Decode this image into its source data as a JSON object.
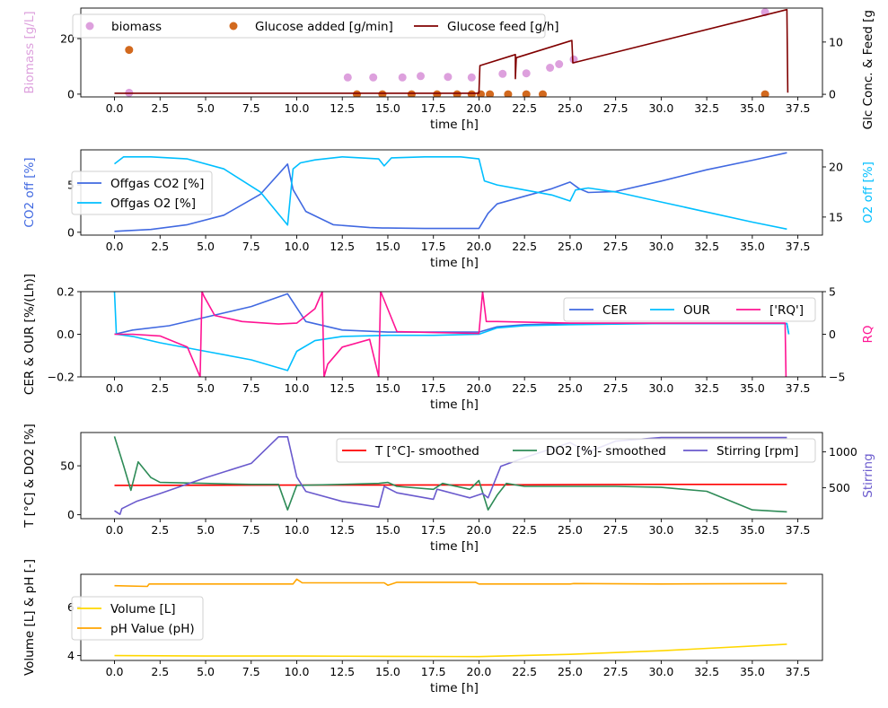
{
  "figure": {
    "colors": {
      "biomass": "#DDA0DD",
      "glucose_added": "#D2691E",
      "glucose_feed": "#800000",
      "co2": "#4169E1",
      "o2": "#00BFFF",
      "cer": "#4169E1",
      "our": "#00BFFF",
      "rq": "#FF1493",
      "temp": "#FF0000",
      "do2": "#2E8B57",
      "stirring": "#6A5ACD",
      "volume": "#FFD700",
      "ph": "#FFA500"
    }
  },
  "chart_data": [
    {
      "type": "scatter+line",
      "xlabel": "time [h]",
      "xlim": [
        -1.85,
        38.85
      ],
      "xticks": [
        "0.0",
        "2.5",
        "5.0",
        "7.5",
        "10.0",
        "12.5",
        "15.0",
        "17.5",
        "20.0",
        "22.5",
        "25.0",
        "27.5",
        "30.0",
        "32.5",
        "35.0",
        "37.5"
      ],
      "ylabel": "Biomass [g/L]",
      "ylim": [
        -1,
        31
      ],
      "yticks": [
        "0",
        "20"
      ],
      "ylabel_right": "Glc Conc. & Feed [g",
      "ylim_right": [
        -0.5,
        16.5
      ],
      "yticks_right": [
        "0",
        "10"
      ],
      "legend": [
        "biomass",
        "Glucose added [g/min]",
        "Glucose feed [g/h]"
      ],
      "legend_position": "upper-left",
      "series": [
        {
          "name": "biomass",
          "kind": "scatter",
          "axis": "left",
          "x": [
            0.8,
            12.8,
            14.2,
            15.8,
            16.8,
            18.3,
            19.6,
            21.3,
            22.6,
            23.9,
            24.4,
            25.2,
            35.7
          ],
          "y": [
            0.5,
            6,
            6,
            6,
            6.5,
            6.2,
            6,
            7.3,
            7.5,
            9.5,
            10.8,
            12.5,
            29.5
          ]
        },
        {
          "name": "Glucose added [g/min]",
          "kind": "scatter",
          "axis": "right",
          "x": [
            0.8,
            13.3,
            14.7,
            16.3,
            17.7,
            18.8,
            19.6,
            20.1,
            20.6,
            21.6,
            22.6,
            23.5,
            35.7
          ],
          "y": [
            8.5,
            0,
            0,
            0,
            0,
            0,
            0,
            0,
            0,
            0,
            0,
            0,
            0
          ]
        },
        {
          "name": "Glucose feed [g/h]",
          "kind": "line",
          "axis": "right",
          "x": [
            0,
            20.0,
            20.05,
            22.0,
            22.0,
            22.05,
            25.1,
            25.15,
            36.9,
            36.95
          ],
          "y": [
            0.2,
            0.2,
            5.5,
            7.6,
            3,
            7.0,
            10.3,
            6.0,
            16.2,
            0.3
          ]
        }
      ]
    },
    {
      "type": "line",
      "xlabel": "time [h]",
      "xlim": [
        -1.85,
        38.85
      ],
      "xticks": [
        "0.0",
        "2.5",
        "5.0",
        "7.5",
        "10.0",
        "12.5",
        "15.0",
        "17.5",
        "20.0",
        "22.5",
        "25.0",
        "27.5",
        "30.0",
        "32.5",
        "35.0",
        "37.5"
      ],
      "ylabel": "CO2 off [%]",
      "ylim": [
        -0.3,
        8.7
      ],
      "yticks": [
        "0",
        "5"
      ],
      "ylabel_right": "O2 off [%]",
      "ylim_right": [
        13.2,
        21.7
      ],
      "yticks_right": [
        "15",
        "20"
      ],
      "legend": [
        "Offgas CO2 [%]",
        "Offgas O2 [%]"
      ],
      "legend_position": "center-left",
      "series": [
        {
          "name": "Offgas CO2 [%]",
          "axis": "left",
          "x": [
            0,
            2,
            4,
            6,
            8,
            9.5,
            9.8,
            10.5,
            12,
            14,
            14.7,
            15,
            17,
            19,
            20.0,
            20.5,
            21,
            22.5,
            24,
            25,
            25.5,
            26,
            27.5,
            30,
            32.5,
            35,
            36.9
          ],
          "y": [
            0.1,
            0.3,
            0.8,
            1.8,
            4,
            7.2,
            4.5,
            2.2,
            0.8,
            0.5,
            0.45,
            0.45,
            0.4,
            0.4,
            0.4,
            2,
            3,
            3.8,
            4.6,
            5.3,
            4.6,
            4.2,
            4.3,
            5.4,
            6.6,
            7.6,
            8.4
          ]
        },
        {
          "name": "Offgas O2 [%]",
          "axis": "right",
          "x": [
            0,
            0.5,
            2,
            4,
            6,
            8,
            9.5,
            9.8,
            10.2,
            11,
            12.5,
            14.5,
            14.8,
            15.2,
            17,
            19,
            20.0,
            20.3,
            21,
            22.5,
            24,
            25,
            25.3,
            26,
            27.5,
            30,
            32.5,
            35,
            36.9
          ],
          "y": [
            20.3,
            21,
            21,
            20.8,
            19.8,
            17.5,
            14.2,
            19.8,
            20.4,
            20.7,
            21,
            20.8,
            20.1,
            20.9,
            21,
            21,
            20.8,
            18.6,
            18.2,
            17.7,
            17.2,
            16.6,
            17.7,
            17.9,
            17.5,
            16.5,
            15.5,
            14.5,
            13.8
          ]
        }
      ]
    },
    {
      "type": "line",
      "xlabel": "time [h]",
      "xlim": [
        -1.85,
        38.85
      ],
      "xticks": [
        "0.0",
        "2.5",
        "5.0",
        "7.5",
        "10.0",
        "12.5",
        "15.0",
        "17.5",
        "20.0",
        "22.5",
        "25.0",
        "27.5",
        "30.0",
        "32.5",
        "35.0",
        "37.5"
      ],
      "ylabel": "CER & OUR [%/(Lh)]",
      "ylim": [
        -0.2,
        0.2
      ],
      "yticks": [
        "−0.2",
        "0.0",
        "0.2"
      ],
      "ylabel_right": "RQ",
      "ylim_right": [
        -5,
        5
      ],
      "yticks_right": [
        "−5",
        "0",
        "5"
      ],
      "legend": [
        "CER",
        "OUR",
        "['RQ']"
      ],
      "legend_position": "upper-right",
      "series": [
        {
          "name": "CER",
          "axis": "left",
          "x": [
            0,
            1,
            3,
            5,
            7.5,
            9.5,
            10.5,
            12.5,
            15,
            17.5,
            20,
            21,
            22.5,
            25,
            30,
            36.9,
            37.0
          ],
          "y": [
            0.0,
            0.02,
            0.04,
            0.08,
            0.13,
            0.19,
            0.06,
            0.02,
            0.01,
            0.01,
            0.01,
            0.035,
            0.045,
            0.05,
            0.05,
            0.05,
            0.0
          ]
        },
        {
          "name": "OUR",
          "axis": "left",
          "x": [
            0,
            0.1,
            1,
            2.5,
            5,
            7.5,
            9.5,
            10,
            11,
            12.5,
            15,
            17.5,
            20,
            21,
            22.5,
            25,
            30,
            36.9,
            37.0
          ],
          "y": [
            0.2,
            0.0,
            -0.01,
            -0.04,
            -0.08,
            -0.12,
            -0.17,
            -0.08,
            -0.03,
            -0.01,
            -0.005,
            -0.005,
            0.0,
            0.03,
            0.04,
            0.045,
            0.05,
            0.05,
            0.0
          ]
        },
        {
          "name": "['RQ']",
          "axis": "right",
          "x": [
            0,
            1,
            2.5,
            4,
            4.7,
            4.8,
            4.9,
            5.5,
            7,
            9,
            10,
            11,
            11.4,
            11.5,
            11.7,
            12.5,
            14,
            14.5,
            14.6,
            14.8,
            15.5,
            17.5,
            20,
            20.2,
            20.4,
            21,
            25,
            30,
            36.8,
            36.85
          ],
          "y": [
            0,
            0,
            -0.2,
            -1.5,
            -5,
            5,
            4.5,
            2.2,
            1.5,
            1.2,
            1.3,
            3,
            5,
            -5,
            -3.5,
            -1.5,
            -0.6,
            -5,
            5,
            4,
            0.3,
            0.2,
            0.1,
            5,
            1.5,
            1.5,
            1.3,
            1.3,
            1.3,
            -5
          ]
        }
      ]
    },
    {
      "type": "line",
      "xlabel": "time [h]",
      "xlim": [
        -1.85,
        38.85
      ],
      "xticks": [
        "0.0",
        "2.5",
        "5.0",
        "7.5",
        "10.0",
        "12.5",
        "15.0",
        "17.5",
        "20.0",
        "22.5",
        "25.0",
        "27.5",
        "30.0",
        "32.5",
        "35.0",
        "37.5"
      ],
      "ylabel": "T [°C] & DO2 [%]",
      "ylim": [
        -4,
        84
      ],
      "yticks": [
        "0",
        "50"
      ],
      "ylabel_right": "Stirring",
      "ylim_right": [
        70,
        1270
      ],
      "yticks_right": [
        "500",
        "1000"
      ],
      "legend": [
        "T [°C]- smoothed",
        "DO2 [%]- smoothed",
        "Stirring [rpm]"
      ],
      "legend_position": "upper-right",
      "series": [
        {
          "name": "T [°C]- smoothed",
          "axis": "left",
          "x": [
            0,
            10,
            20,
            30,
            36.9
          ],
          "y": [
            30,
            30.3,
            30.5,
            31,
            31
          ]
        },
        {
          "name": "DO2 [%]- smoothed",
          "axis": "left",
          "x": [
            0,
            0.5,
            0.9,
            1.3,
            2,
            2.5,
            5,
            7.5,
            9,
            9.5,
            10,
            12.5,
            14.5,
            15,
            15.5,
            17.5,
            18,
            19.5,
            20,
            20.5,
            21,
            21.5,
            22.5,
            25,
            27.5,
            30,
            32.5,
            35,
            36.9
          ],
          "y": [
            80,
            50,
            25,
            54,
            38,
            33,
            32,
            31,
            31,
            5,
            30,
            31,
            32,
            33,
            29,
            26,
            32,
            26,
            35,
            5,
            20,
            32,
            29,
            29,
            29,
            28,
            24,
            5,
            3
          ]
        },
        {
          "name": "Stirring [rpm]",
          "axis": "right",
          "x": [
            0,
            0.3,
            0.4,
            1.2,
            2.5,
            5,
            7.5,
            9,
            9.5,
            10,
            10.5,
            12.5,
            14.5,
            14.8,
            15.5,
            17.5,
            17.7,
            19.5,
            20.2,
            20.5,
            21.2,
            22.5,
            25,
            25.5,
            26,
            27.5,
            30,
            36.9
          ],
          "y": [
            180,
            130,
            210,
            310,
            420,
            640,
            840,
            1210,
            1210,
            650,
            450,
            310,
            230,
            520,
            430,
            340,
            480,
            360,
            420,
            360,
            800,
            920,
            1130,
            1060,
            1000,
            1150,
            1200,
            1200
          ]
        }
      ]
    },
    {
      "type": "line",
      "xlabel": "time [h]",
      "xlim": [
        -1.85,
        38.85
      ],
      "xticks": [
        "0.0",
        "2.5",
        "5.0",
        "7.5",
        "10.0",
        "12.5",
        "15.0",
        "17.5",
        "20.0",
        "22.5",
        "25.0",
        "27.5",
        "30.0",
        "32.5",
        "35.0",
        "37.5"
      ],
      "ylabel": "Volume [L] & pH [-]",
      "ylim": [
        3.8,
        7.35
      ],
      "yticks": [
        "4",
        "6"
      ],
      "legend": [
        "Volume [L]",
        "pH Value (pH)"
      ],
      "legend_position": "center-left",
      "series": [
        {
          "name": "Volume [L]",
          "axis": "left",
          "x": [
            0,
            5,
            10,
            15,
            20,
            25,
            30,
            36.9
          ],
          "y": [
            4.0,
            3.98,
            3.98,
            3.97,
            3.96,
            4.05,
            4.2,
            4.47
          ]
        },
        {
          "name": "pH Value (pH)",
          "axis": "left",
          "x": [
            0,
            1.8,
            1.9,
            9.8,
            10,
            10.3,
            14.8,
            15,
            15.5,
            19.8,
            20,
            25,
            25.2,
            30,
            36.9
          ],
          "y": [
            6.88,
            6.85,
            6.95,
            6.95,
            7.15,
            7.0,
            7.0,
            6.9,
            7.02,
            7.02,
            6.95,
            6.95,
            6.97,
            6.95,
            6.97
          ]
        }
      ]
    }
  ]
}
